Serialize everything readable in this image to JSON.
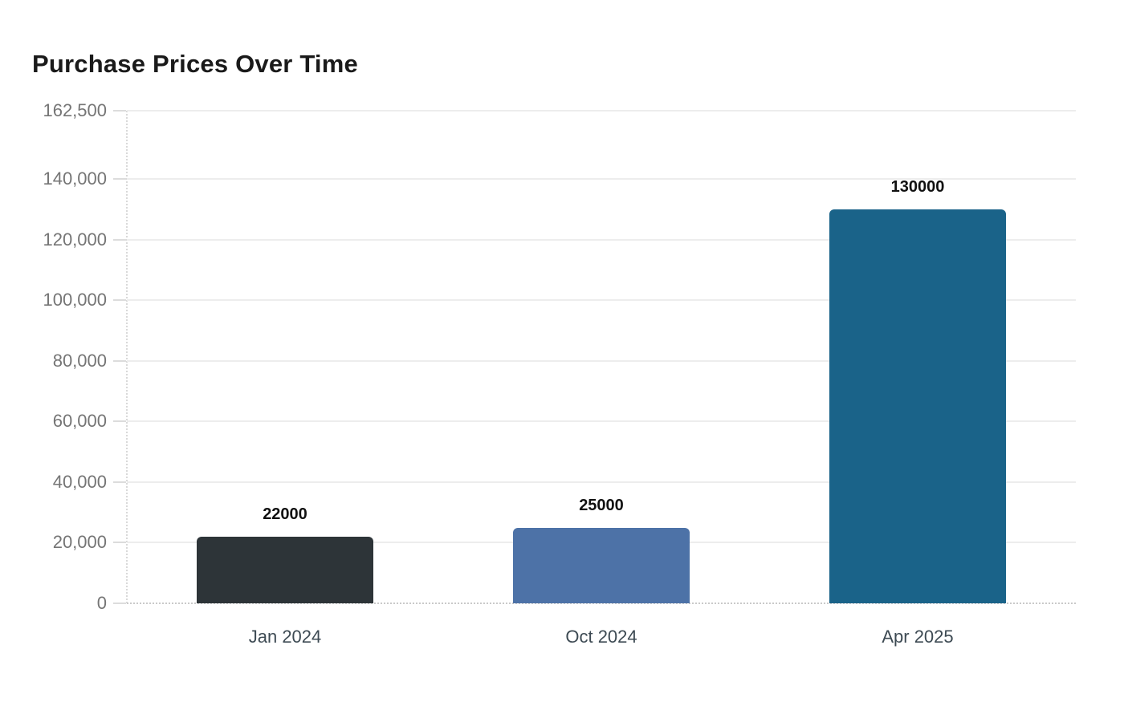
{
  "page": {
    "background": "#ffffff"
  },
  "chart_data": {
    "type": "bar",
    "title": "Purchase Prices Over Time",
    "categories": [
      "Jan 2024",
      "Oct 2024",
      "Apr 2025"
    ],
    "values": [
      22000,
      25000,
      130000
    ],
    "value_labels": [
      "22000",
      "25000",
      "130000"
    ],
    "bar_colors": [
      "#2d3438",
      "#4d72a7",
      "#1a6389"
    ],
    "xlabel": "",
    "ylabel": "",
    "ylim": [
      0,
      162500
    ],
    "yticks": [
      {
        "value": 0,
        "label": "0"
      },
      {
        "value": 20000,
        "label": "20,000"
      },
      {
        "value": 40000,
        "label": "40,000"
      },
      {
        "value": 60000,
        "label": "60,000"
      },
      {
        "value": 80000,
        "label": "80,000"
      },
      {
        "value": 100000,
        "label": "100,000"
      },
      {
        "value": 120000,
        "label": "120,000"
      },
      {
        "value": 140000,
        "label": "140,000"
      },
      {
        "value": 162500,
        "label": "162,500"
      }
    ],
    "grid": true,
    "legend": "none",
    "colors": {
      "title": "#1a1a1a",
      "y_tick_label": "#757575",
      "x_axis_label": "#3d4a53",
      "value_label": "#111111",
      "gridline": "#ededed",
      "axis_tick": "#dcdcdc",
      "axis_line": "#d9d9d9",
      "baseline": "#c9c9c9",
      "background": "#ffffff"
    }
  }
}
